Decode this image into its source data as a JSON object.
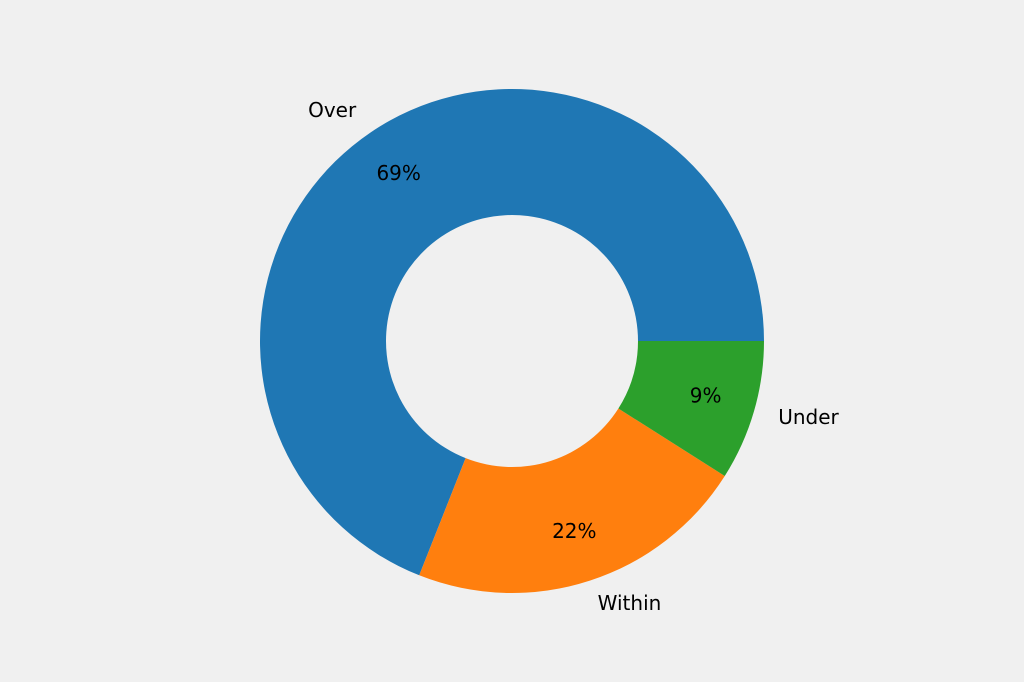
{
  "chart_data": {
    "type": "donut",
    "categories": [
      "Over",
      "Within",
      "Under"
    ],
    "values": [
      69,
      22,
      9
    ],
    "value_labels": [
      "69%",
      "22%",
      "9%"
    ],
    "colors": [
      "#1f77b4",
      "#ff7f0e",
      "#2ca02c"
    ]
  }
}
